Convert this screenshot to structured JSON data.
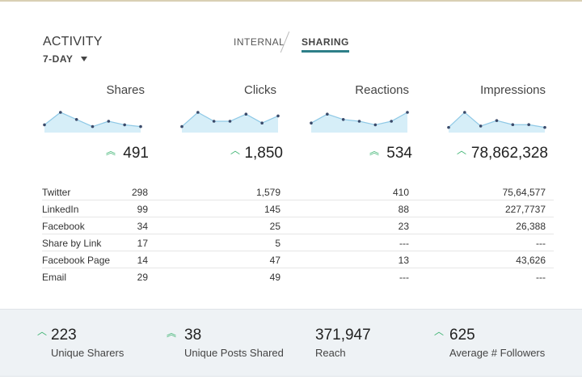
{
  "header": {
    "title": "ACTIVITY",
    "range": "7-DAY",
    "tabs": {
      "internal": "INTERNAL",
      "sharing": "SHARING"
    }
  },
  "colors": {
    "accent": "#2e7f88",
    "up": "#3cb371",
    "spark_fill": "#d6eef8",
    "spark_line": "#3a4a6a"
  },
  "metrics": [
    {
      "label": "Shares",
      "value": "491",
      "trend": "double-up",
      "spark": [
        3,
        10,
        6,
        2,
        5,
        3,
        2
      ]
    },
    {
      "label": "Clicks",
      "value": "1,850",
      "trend": "up",
      "spark": [
        2,
        10,
        5,
        5,
        9,
        4,
        8
      ]
    },
    {
      "label": "Reactions",
      "value": "534",
      "trend": "double-up",
      "spark": [
        4,
        9,
        6,
        5,
        3,
        5,
        10
      ]
    },
    {
      "label": "Impressions",
      "value": "78,862,328",
      "trend": "up",
      "spark": [
        2,
        13,
        3,
        7,
        4,
        4,
        2
      ]
    }
  ],
  "table": {
    "rows": [
      {
        "source": "Twitter",
        "shares": "298",
        "clicks": "1,579",
        "reactions": "410",
        "impressions": "75,64,577"
      },
      {
        "source": "LinkedIn",
        "shares": "99",
        "clicks": "145",
        "reactions": "88",
        "impressions": "227,7737"
      },
      {
        "source": "Facebook",
        "shares": "34",
        "clicks": "25",
        "reactions": "23",
        "impressions": "26,388"
      },
      {
        "source": "Share by Link",
        "shares": "17",
        "clicks": "5",
        "reactions": "---",
        "impressions": "---"
      },
      {
        "source": "Facebook Page",
        "shares": "14",
        "clicks": "47",
        "reactions": "13",
        "impressions": "43,626"
      },
      {
        "source": "Email",
        "shares": "29",
        "clicks": "49",
        "reactions": "---",
        "impressions": "---"
      }
    ]
  },
  "footer": {
    "stats": [
      {
        "value": "223",
        "label": "Unique Sharers",
        "trend": "up"
      },
      {
        "value": "38",
        "label": "Unique Posts Shared",
        "trend": "double-up"
      },
      {
        "value": "371,947",
        "label": "Reach",
        "trend": "none"
      },
      {
        "value": "625",
        "label": "Average # Followers",
        "trend": "up"
      }
    ]
  }
}
